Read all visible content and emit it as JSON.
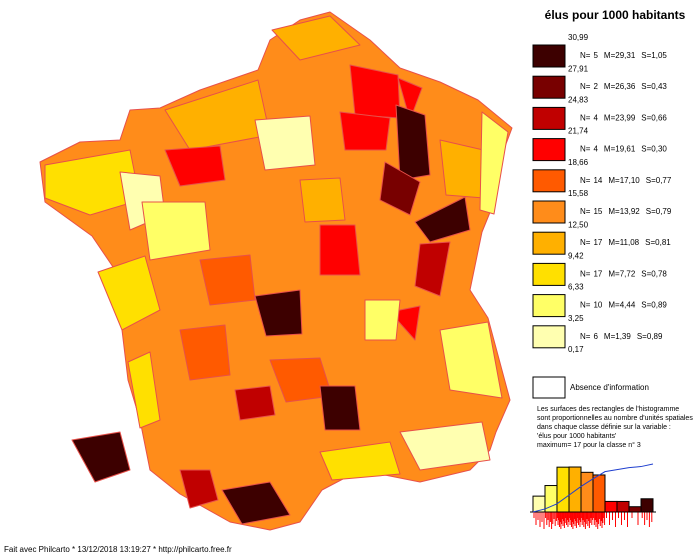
{
  "legend": {
    "title": "élus pour 1000 habitants",
    "stat_labels": [
      "N=",
      "M=",
      "S="
    ],
    "bounds": [
      {
        "value": 30.99,
        "label": "30,99"
      },
      {
        "value": 27.91,
        "label": "27,91"
      },
      {
        "value": 24.83,
        "label": "24,83"
      },
      {
        "value": 21.74,
        "label": "21,74"
      },
      {
        "value": 18.66,
        "label": "18,66"
      },
      {
        "value": 15.58,
        "label": "15,58"
      },
      {
        "value": 12.5,
        "label": "12,50"
      },
      {
        "value": 9.42,
        "label": "9,42"
      },
      {
        "value": 6.33,
        "label": "6,33"
      },
      {
        "value": 3.25,
        "label": "3,25"
      },
      {
        "value": 0.17,
        "label": "0,17"
      }
    ],
    "classes": [
      {
        "n": 5,
        "m": "29,31",
        "s": "1,05",
        "color": "#3d0000"
      },
      {
        "n": 2,
        "m": "26,36",
        "s": "0,43",
        "color": "#780000"
      },
      {
        "n": 4,
        "m": "23,99",
        "s": "0,66",
        "color": "#c00000"
      },
      {
        "n": 4,
        "m": "19,61",
        "s": "0,30",
        "color": "#ff0000"
      },
      {
        "n": 14,
        "m": "17,10",
        "s": "0,77",
        "color": "#ff5a00"
      },
      {
        "n": 15,
        "m": "13,92",
        "s": "0,79",
        "color": "#ff8c1a"
      },
      {
        "n": 17,
        "m": "11,08",
        "s": "0,81",
        "color": "#ffb000"
      },
      {
        "n": 17,
        "m": "7,72",
        "s": "0,78",
        "color": "#ffe000"
      },
      {
        "n": 10,
        "m": "4,44",
        "s": "0,89",
        "color": "#ffff66"
      },
      {
        "n": 6,
        "m": "1,39",
        "s": "0,89",
        "color": "#ffffb0"
      }
    ],
    "absence": "Absence d'information",
    "notes": [
      "Les surfaces des rectangles de l'histogramme",
      "sont proportionnelles au nombre d'unités spatiales",
      "dans chaque classe définie sur la variable :",
      "'élus pour 1000 habitants'",
      "maximum= 17 pour la classe n° 3"
    ]
  },
  "footer": "Fait avec Philcarto * 13/12/2018 13:19:27 * http://philcarto.free.fr"
}
